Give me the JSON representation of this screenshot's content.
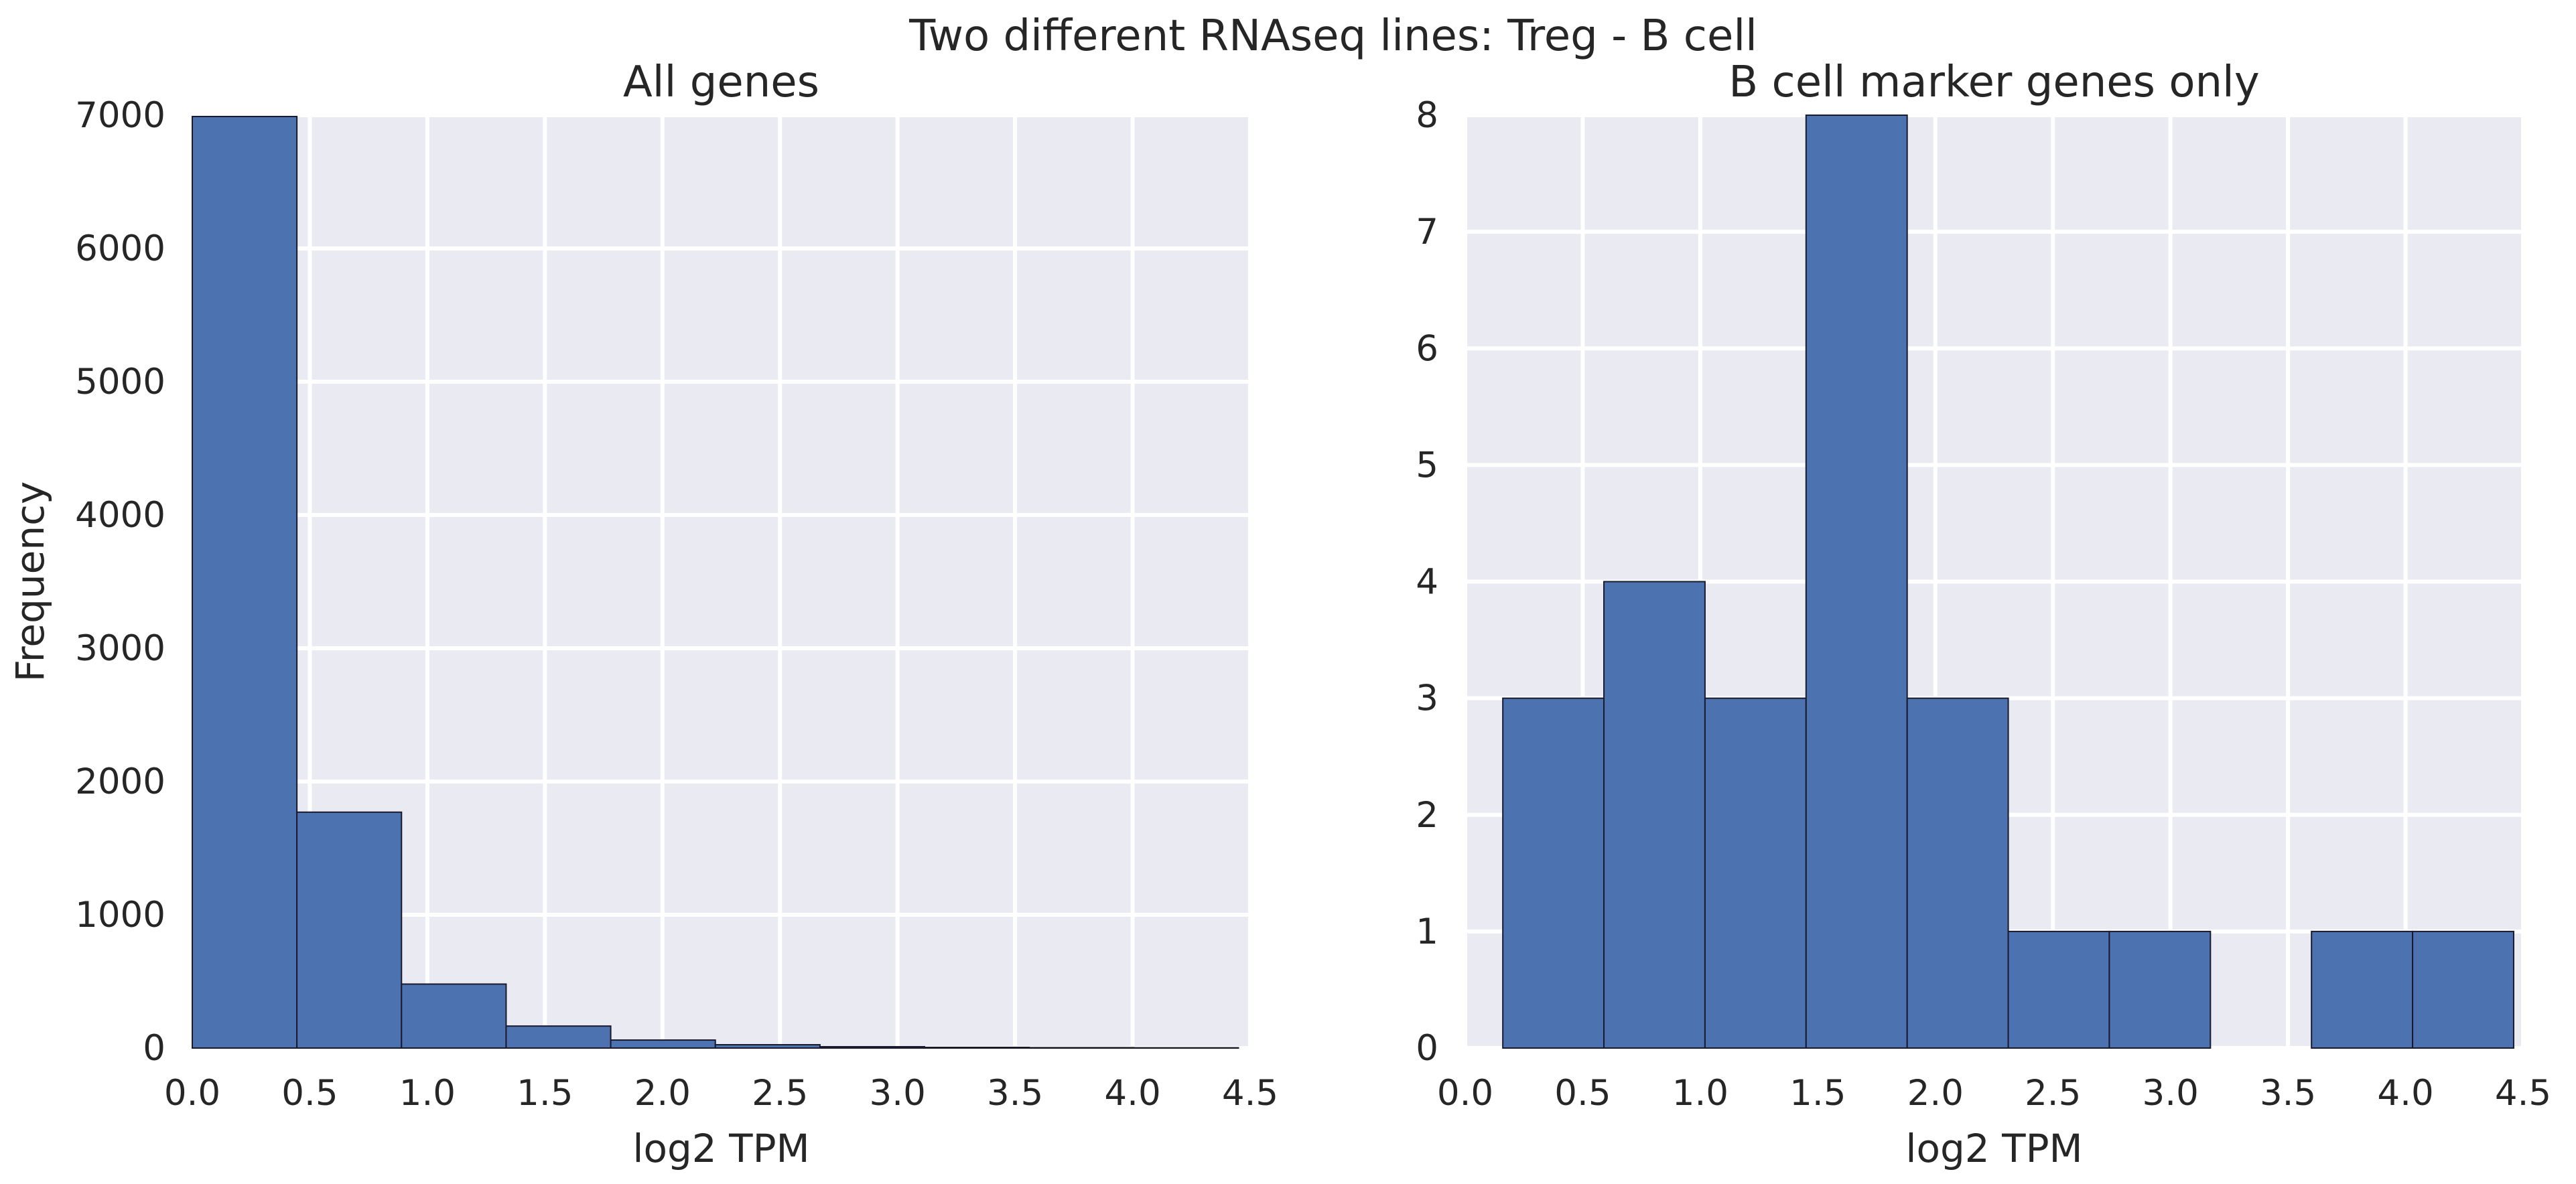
{
  "figure": {
    "suptitle": "Two different RNAseq lines: Treg - B cell"
  },
  "chart_data": [
    {
      "type": "bar",
      "subtype": "histogram",
      "title": "All genes",
      "xlabel": "log2 TPM",
      "ylabel": "Frequency",
      "xlim": [
        0.0,
        4.5
      ],
      "ylim": [
        0,
        7000
      ],
      "grid": true,
      "bar_color": "#4c72b0",
      "background": "#eaeaf2",
      "xticks": [
        "0.0",
        "0.5",
        "1.0",
        "1.5",
        "2.0",
        "2.5",
        "3.0",
        "3.5",
        "4.0",
        "4.5"
      ],
      "yticks": [
        "0",
        "1000",
        "2000",
        "3000",
        "4000",
        "5000",
        "6000",
        "7000"
      ],
      "bins": [
        {
          "x0": 0.0,
          "x1": 0.445,
          "count": 6990
        },
        {
          "x0": 0.445,
          "x1": 0.89,
          "count": 1770
        },
        {
          "x0": 0.89,
          "x1": 1.335,
          "count": 480
        },
        {
          "x0": 1.335,
          "x1": 1.78,
          "count": 165
        },
        {
          "x0": 1.78,
          "x1": 2.225,
          "count": 60
        },
        {
          "x0": 2.225,
          "x1": 2.67,
          "count": 25
        },
        {
          "x0": 2.67,
          "x1": 3.115,
          "count": 10
        },
        {
          "x0": 3.115,
          "x1": 3.56,
          "count": 5
        },
        {
          "x0": 3.56,
          "x1": 4.005,
          "count": 3
        },
        {
          "x0": 4.005,
          "x1": 4.45,
          "count": 2
        }
      ]
    },
    {
      "type": "bar",
      "subtype": "histogram",
      "title": "B cell marker genes only",
      "xlabel": "log2 TPM",
      "ylabel": "",
      "xlim": [
        0.0,
        4.5
      ],
      "ylim": [
        0,
        8
      ],
      "grid": true,
      "bar_color": "#4c72b0",
      "background": "#eaeaf2",
      "xticks": [
        "0.0",
        "0.5",
        "1.0",
        "1.5",
        "2.0",
        "2.5",
        "3.0",
        "3.5",
        "4.0",
        "4.5"
      ],
      "yticks": [
        "0",
        "1",
        "2",
        "3",
        "4",
        "5",
        "6",
        "7",
        "8"
      ],
      "bins": [
        {
          "x0": 0.16,
          "x1": 0.59,
          "count": 3
        },
        {
          "x0": 0.59,
          "x1": 1.02,
          "count": 4
        },
        {
          "x0": 1.02,
          "x1": 1.45,
          "count": 3
        },
        {
          "x0": 1.45,
          "x1": 1.88,
          "count": 8
        },
        {
          "x0": 1.88,
          "x1": 2.31,
          "count": 3
        },
        {
          "x0": 2.31,
          "x1": 2.74,
          "count": 1
        },
        {
          "x0": 2.74,
          "x1": 3.17,
          "count": 1
        },
        {
          "x0": 3.17,
          "x1": 3.6,
          "count": 0
        },
        {
          "x0": 3.6,
          "x1": 4.03,
          "count": 1
        },
        {
          "x0": 4.03,
          "x1": 4.46,
          "count": 1
        }
      ]
    }
  ]
}
